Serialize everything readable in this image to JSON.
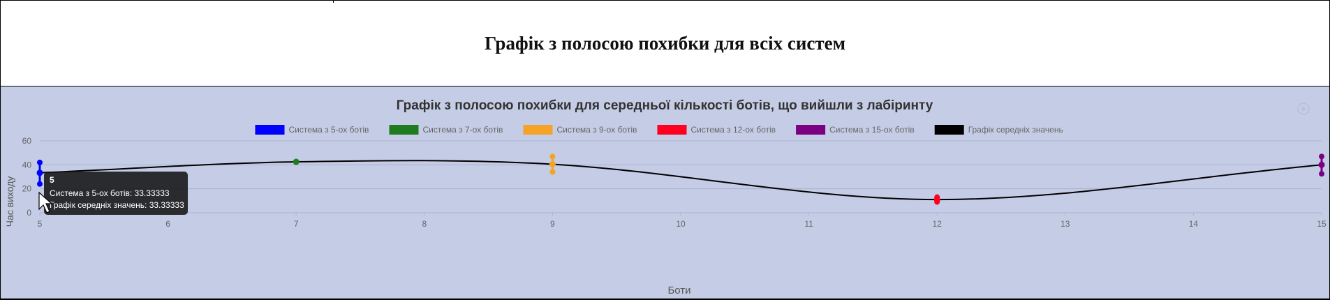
{
  "page": {
    "title": "Графік з полосою похибки для всіх систем"
  },
  "chart_data": {
    "type": "line",
    "title": "Графік з полосою похибки для середньої кількості ботів, що вийшли з лабіринту",
    "xlabel": "Боти",
    "ylabel": "Час виходу",
    "xlim": [
      5,
      15
    ],
    "ylim": [
      0,
      60
    ],
    "x_ticks": [
      "5",
      "6",
      "7",
      "8",
      "9",
      "10",
      "11",
      "12",
      "13",
      "14",
      "15"
    ],
    "y_ticks": [
      "0",
      "20",
      "40",
      "60"
    ],
    "grid": true,
    "legend_position": "top",
    "series": [
      {
        "name": "Система з 5-ох ботів",
        "color": "#0000ff",
        "x": 5,
        "mean": 33.33333,
        "min": 24,
        "max": 42
      },
      {
        "name": "Система з 7-ох ботів",
        "color": "#1e7b1e",
        "x": 7,
        "mean": 42.5,
        "min": 42.5,
        "max": 42.5
      },
      {
        "name": "Система з 9-ох ботів",
        "color": "#f5a326",
        "x": 9,
        "mean": 40.5,
        "min": 34,
        "max": 47
      },
      {
        "name": "Система з 12-ох ботів",
        "color": "#ff0020",
        "x": 12,
        "mean": 11,
        "min": 9,
        "max": 13
      },
      {
        "name": "Система з 15-ох ботів",
        "color": "#7b0082",
        "x": 15,
        "mean": 40,
        "min": 32.5,
        "max": 47
      }
    ],
    "mean_line": {
      "name": "Графік середніх значень",
      "color": "#000000",
      "x": [
        5,
        7,
        9,
        12,
        15
      ],
      "y": [
        33.33333,
        42.5,
        40.5,
        11,
        40
      ]
    },
    "tooltip": {
      "title": "5",
      "lines": [
        "Система з 5-ох ботів: 33.33333",
        "Графік середніх значень: 33.33333"
      ]
    }
  }
}
